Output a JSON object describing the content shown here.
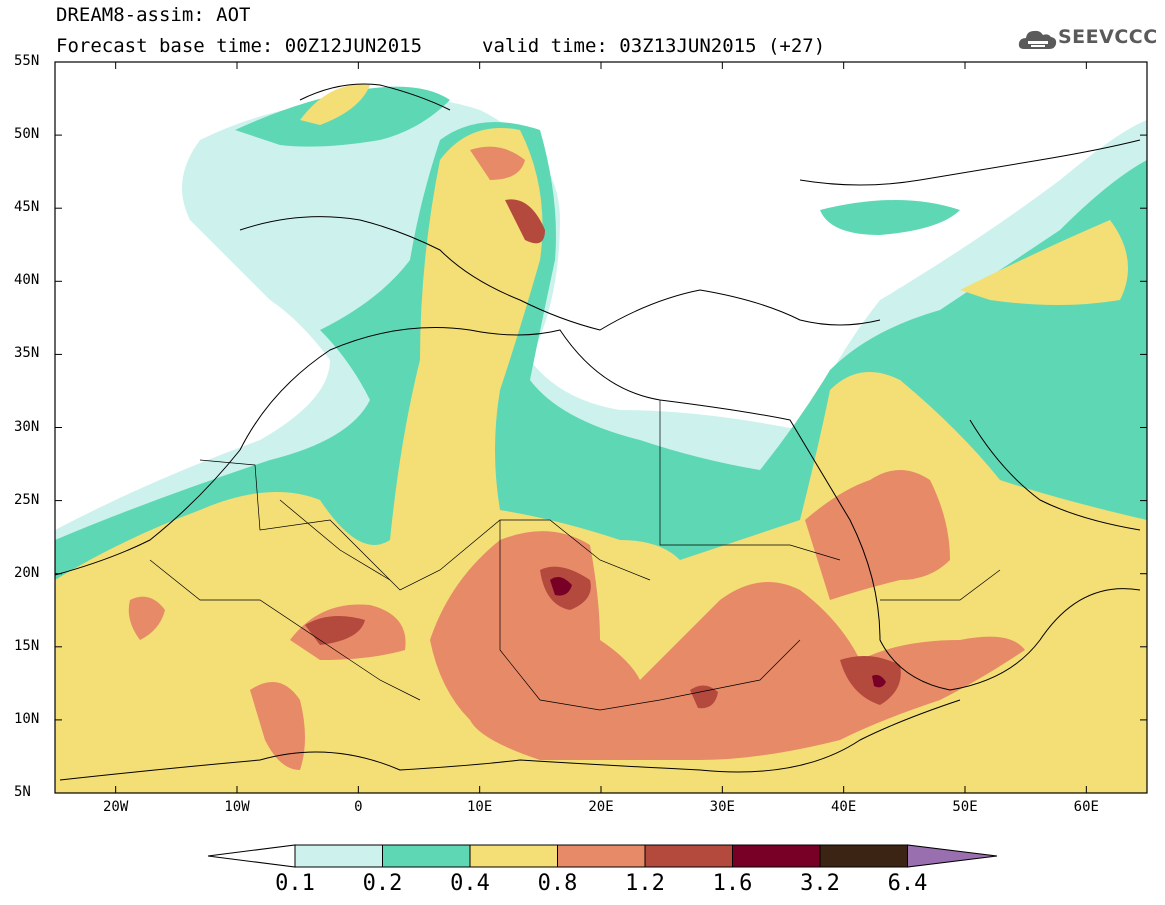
{
  "header": {
    "model_line": "DREAM8-assim: AOT",
    "base_time": "Forecast base time: 00Z12JUN2015",
    "valid_time": "valid time: 03Z13JUN2015 (+27)",
    "logo_text": "SEEVCCC"
  },
  "map": {
    "lat_labels": [
      "55N",
      "50N",
      "45N",
      "40N",
      "35N",
      "30N",
      "25N",
      "20N",
      "15N",
      "10N",
      "5N"
    ],
    "lon_labels": [
      "20W",
      "10W",
      "0",
      "10E",
      "20E",
      "30E",
      "40E",
      "50E",
      "60E"
    ],
    "lat_range": [
      5,
      55
    ],
    "lon_range": [
      -25,
      65
    ]
  },
  "colorbar": {
    "labels": [
      "0.1",
      "0.2",
      "0.4",
      "0.8",
      "1.2",
      "1.6",
      "3.2",
      "6.4"
    ],
    "bins": [
      {
        "range": "0.1-0.2",
        "color": "#cdf2ee"
      },
      {
        "range": "0.2-0.4",
        "color": "#5ed8b4"
      },
      {
        "range": "0.4-0.8",
        "color": "#f4de76"
      },
      {
        "range": "0.8-1.2",
        "color": "#e78a68"
      },
      {
        "range": "1.2-1.6",
        "color": "#b4493e"
      },
      {
        "range": "1.6-3.2",
        "color": "#780026"
      },
      {
        "range": "3.2-6.4",
        "color": "#3c2414"
      }
    ],
    "low_extend_color": "#ffffff",
    "high_extend_color": "#9a6fb0"
  }
}
